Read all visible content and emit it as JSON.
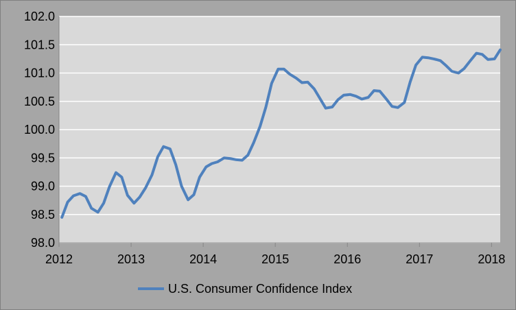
{
  "chart_data": {
    "type": "line",
    "title": "",
    "xlabel": "",
    "ylabel": "",
    "xlim": [
      2012.0,
      2018.12
    ],
    "ylim": [
      98.0,
      102.0
    ],
    "x_ticks": [
      2012,
      2013,
      2014,
      2015,
      2016,
      2017,
      2018
    ],
    "x_tick_labels": [
      "2012",
      "2013",
      "2014",
      "2015",
      "2016",
      "2017",
      "2018"
    ],
    "y_ticks": [
      98.0,
      98.5,
      99.0,
      99.5,
      100.0,
      100.5,
      101.0,
      101.5,
      102.0
    ],
    "y_tick_labels": [
      "98.0",
      "98.5",
      "99.0",
      "99.5",
      "100.0",
      "100.5",
      "101.0",
      "101.5",
      "102.0"
    ],
    "grid": "horizontal",
    "legend_position": "bottom",
    "background_color": "#d9d9d9",
    "outer_color": "#a6a6a6",
    "gridline_color": "#ffffff",
    "series": [
      {
        "name": "U.S. Consumer Confidence Index",
        "color": "#4f81bd",
        "points": [
          [
            2012.04,
            98.45
          ],
          [
            2012.12,
            98.72
          ],
          [
            2012.2,
            98.83
          ],
          [
            2012.29,
            98.87
          ],
          [
            2012.37,
            98.82
          ],
          [
            2012.45,
            98.61
          ],
          [
            2012.54,
            98.54
          ],
          [
            2012.62,
            98.7
          ],
          [
            2012.7,
            98.99
          ],
          [
            2012.79,
            99.24
          ],
          [
            2012.87,
            99.16
          ],
          [
            2012.95,
            98.84
          ],
          [
            2013.04,
            98.7
          ],
          [
            2013.12,
            98.81
          ],
          [
            2013.2,
            98.97
          ],
          [
            2013.29,
            99.2
          ],
          [
            2013.37,
            99.52
          ],
          [
            2013.45,
            99.7
          ],
          [
            2013.54,
            99.66
          ],
          [
            2013.62,
            99.38
          ],
          [
            2013.7,
            99.0
          ],
          [
            2013.79,
            98.76
          ],
          [
            2013.87,
            98.85
          ],
          [
            2013.95,
            99.16
          ],
          [
            2014.04,
            99.34
          ],
          [
            2014.12,
            99.4
          ],
          [
            2014.2,
            99.43
          ],
          [
            2014.29,
            99.5
          ],
          [
            2014.37,
            99.49
          ],
          [
            2014.45,
            99.47
          ],
          [
            2014.54,
            99.46
          ],
          [
            2014.62,
            99.55
          ],
          [
            2014.7,
            99.77
          ],
          [
            2014.79,
            100.06
          ],
          [
            2014.87,
            100.4
          ],
          [
            2014.95,
            100.82
          ],
          [
            2015.04,
            101.07
          ],
          [
            2015.12,
            101.07
          ],
          [
            2015.2,
            100.98
          ],
          [
            2015.29,
            100.91
          ],
          [
            2015.37,
            100.83
          ],
          [
            2015.45,
            100.84
          ],
          [
            2015.54,
            100.72
          ],
          [
            2015.62,
            100.55
          ],
          [
            2015.7,
            100.38
          ],
          [
            2015.79,
            100.4
          ],
          [
            2015.87,
            100.53
          ],
          [
            2015.95,
            100.61
          ],
          [
            2016.04,
            100.62
          ],
          [
            2016.12,
            100.59
          ],
          [
            2016.2,
            100.54
          ],
          [
            2016.29,
            100.57
          ],
          [
            2016.37,
            100.69
          ],
          [
            2016.45,
            100.68
          ],
          [
            2016.54,
            100.54
          ],
          [
            2016.62,
            100.41
          ],
          [
            2016.7,
            100.39
          ],
          [
            2016.79,
            100.48
          ],
          [
            2016.87,
            100.84
          ],
          [
            2016.95,
            101.14
          ],
          [
            2017.04,
            101.28
          ],
          [
            2017.12,
            101.27
          ],
          [
            2017.2,
            101.25
          ],
          [
            2017.29,
            101.22
          ],
          [
            2017.37,
            101.13
          ],
          [
            2017.45,
            101.03
          ],
          [
            2017.54,
            101.0
          ],
          [
            2017.62,
            101.08
          ],
          [
            2017.7,
            101.21
          ],
          [
            2017.79,
            101.35
          ],
          [
            2017.87,
            101.33
          ],
          [
            2017.95,
            101.24
          ],
          [
            2018.04,
            101.25
          ],
          [
            2018.12,
            101.41
          ]
        ]
      }
    ]
  }
}
